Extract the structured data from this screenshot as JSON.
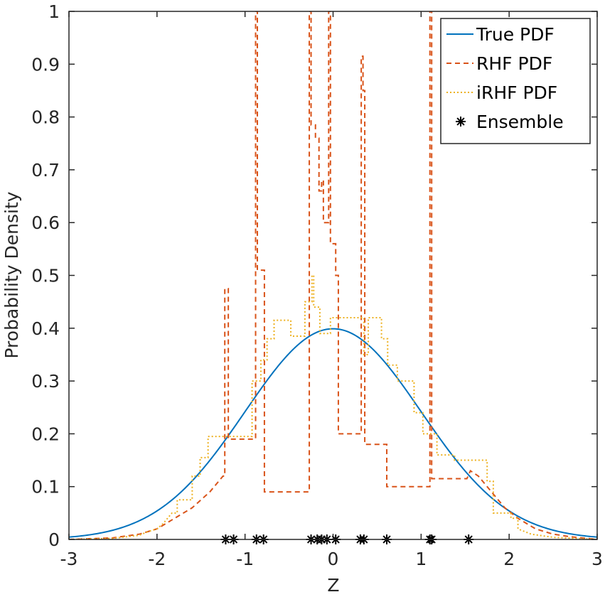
{
  "chart_data": {
    "type": "line",
    "xlabel": "Z",
    "ylabel": "Probability Density",
    "xlim": [
      -3,
      3
    ],
    "ylim": [
      0,
      1
    ],
    "xticks": [
      "-3",
      "-2",
      "-1",
      "0",
      "1",
      "2",
      "3"
    ],
    "yticks": [
      "0",
      "0.1",
      "0.2",
      "0.3",
      "0.4",
      "0.5",
      "0.6",
      "0.7",
      "0.8",
      "0.9",
      "1"
    ],
    "grid": false,
    "legend_position": "top-right",
    "series": [
      {
        "name": "True PDF",
        "kind": "normal-pdf",
        "mean": 0,
        "std": 1,
        "color": "#0072BD",
        "style": "solid"
      },
      {
        "name": "RHF PDF",
        "kind": "curve",
        "color": "#D95319",
        "style": "dashed",
        "points": [
          [
            -3.0,
            0.0
          ],
          [
            -2.5,
            0.003
          ],
          [
            -2.2,
            0.01
          ],
          [
            -2.0,
            0.02
          ],
          [
            -1.8,
            0.04
          ],
          [
            -1.6,
            0.06
          ],
          [
            -1.4,
            0.09
          ],
          [
            -1.25,
            0.12
          ],
          [
            -1.23,
            0.12
          ],
          [
            -1.23,
            0.475
          ],
          [
            -1.19,
            0.475
          ],
          [
            -1.19,
            0.19
          ],
          [
            -0.88,
            0.19
          ],
          [
            -0.88,
            1.0
          ],
          [
            -0.86,
            1.0
          ],
          [
            -0.86,
            0.51
          ],
          [
            -0.78,
            0.51
          ],
          [
            -0.78,
            0.09
          ],
          [
            -0.27,
            0.09
          ],
          [
            -0.27,
            1.0
          ],
          [
            -0.25,
            1.0
          ],
          [
            -0.25,
            0.785
          ],
          [
            -0.2,
            0.785
          ],
          [
            -0.2,
            0.76
          ],
          [
            -0.16,
            0.76
          ],
          [
            -0.16,
            0.66
          ],
          [
            -0.13,
            0.66
          ],
          [
            -0.13,
            0.68
          ],
          [
            -0.11,
            0.68
          ],
          [
            -0.11,
            0.6
          ],
          [
            -0.05,
            0.6
          ],
          [
            -0.05,
            1.0
          ],
          [
            -0.03,
            1.0
          ],
          [
            -0.03,
            0.56
          ],
          [
            0.03,
            0.56
          ],
          [
            0.03,
            0.5
          ],
          [
            0.06,
            0.5
          ],
          [
            0.06,
            0.2
          ],
          [
            0.32,
            0.2
          ],
          [
            0.32,
            0.915
          ],
          [
            0.34,
            0.915
          ],
          [
            0.34,
            0.85
          ],
          [
            0.36,
            0.85
          ],
          [
            0.36,
            0.18
          ],
          [
            0.61,
            0.18
          ],
          [
            0.61,
            0.1
          ],
          [
            1.1,
            0.1
          ],
          [
            1.1,
            1.0
          ],
          [
            1.12,
            1.0
          ],
          [
            1.12,
            0.115
          ],
          [
            1.52,
            0.115
          ],
          [
            1.56,
            0.13
          ],
          [
            1.65,
            0.12
          ],
          [
            1.8,
            0.09
          ],
          [
            1.95,
            0.06
          ],
          [
            2.1,
            0.04
          ],
          [
            2.3,
            0.02
          ],
          [
            2.5,
            0.01
          ],
          [
            2.7,
            0.005
          ],
          [
            3.0,
            0.0
          ]
        ]
      },
      {
        "name": "iRHF PDF",
        "kind": "curve",
        "color": "#EDB120",
        "style": "dotted",
        "points": [
          [
            -3.0,
            0.0
          ],
          [
            -2.5,
            0.002
          ],
          [
            -2.2,
            0.008
          ],
          [
            -2.1,
            0.015
          ],
          [
            -2.0,
            0.02
          ],
          [
            -1.93,
            0.03
          ],
          [
            -1.83,
            0.05
          ],
          [
            -1.77,
            0.05
          ],
          [
            -1.77,
            0.075
          ],
          [
            -1.6,
            0.075
          ],
          [
            -1.6,
            0.12
          ],
          [
            -1.51,
            0.12
          ],
          [
            -1.51,
            0.155
          ],
          [
            -1.42,
            0.155
          ],
          [
            -1.42,
            0.195
          ],
          [
            -0.92,
            0.195
          ],
          [
            -0.92,
            0.3
          ],
          [
            -0.82,
            0.3
          ],
          [
            -0.82,
            0.34
          ],
          [
            -0.75,
            0.34
          ],
          [
            -0.75,
            0.38
          ],
          [
            -0.67,
            0.38
          ],
          [
            -0.67,
            0.415
          ],
          [
            -0.48,
            0.415
          ],
          [
            -0.48,
            0.385
          ],
          [
            -0.32,
            0.385
          ],
          [
            -0.32,
            0.45
          ],
          [
            -0.24,
            0.45
          ],
          [
            -0.24,
            0.5
          ],
          [
            -0.22,
            0.5
          ],
          [
            -0.22,
            0.44
          ],
          [
            -0.15,
            0.44
          ],
          [
            -0.15,
            0.39
          ],
          [
            -0.03,
            0.39
          ],
          [
            -0.03,
            0.42
          ],
          [
            0.35,
            0.42
          ],
          [
            0.35,
            0.35
          ],
          [
            0.4,
            0.35
          ],
          [
            0.4,
            0.42
          ],
          [
            0.55,
            0.42
          ],
          [
            0.55,
            0.38
          ],
          [
            0.62,
            0.38
          ],
          [
            0.62,
            0.33
          ],
          [
            0.73,
            0.33
          ],
          [
            0.73,
            0.3
          ],
          [
            0.92,
            0.3
          ],
          [
            0.92,
            0.24
          ],
          [
            1.02,
            0.24
          ],
          [
            1.02,
            0.2
          ],
          [
            1.18,
            0.2
          ],
          [
            1.18,
            0.16
          ],
          [
            1.38,
            0.16
          ],
          [
            1.38,
            0.15
          ],
          [
            1.75,
            0.15
          ],
          [
            1.75,
            0.11
          ],
          [
            1.82,
            0.11
          ],
          [
            1.82,
            0.05
          ],
          [
            2.02,
            0.05
          ],
          [
            2.02,
            0.04
          ],
          [
            2.1,
            0.04
          ],
          [
            2.1,
            0.02
          ],
          [
            2.25,
            0.01
          ],
          [
            2.5,
            0.004
          ],
          [
            3.0,
            0.0
          ]
        ]
      },
      {
        "name": "Ensemble",
        "kind": "markers",
        "marker": "asterisk",
        "color": "#000000",
        "x": [
          -1.22,
          -1.13,
          -0.87,
          -0.79,
          -0.25,
          -0.18,
          -0.13,
          -0.07,
          0.03,
          0.31,
          0.35,
          0.61,
          1.1,
          1.12,
          1.54
        ],
        "y": [
          0,
          0,
          0,
          0,
          0,
          0,
          0,
          0,
          0,
          0,
          0,
          0,
          0,
          0,
          0
        ]
      }
    ]
  }
}
